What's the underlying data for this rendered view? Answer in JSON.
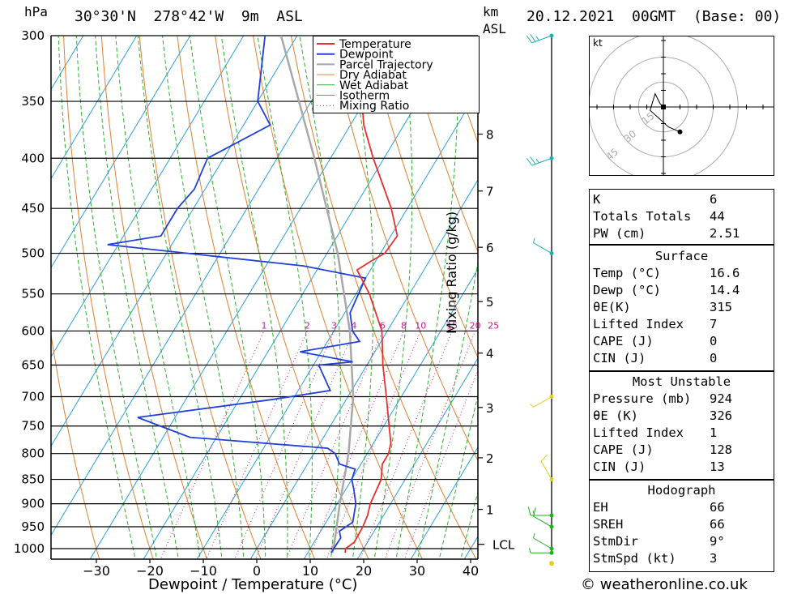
{
  "header": {
    "unit_left": "hPa",
    "location": "30°30'N  278°42'W  9m  ASL",
    "km_label": "km",
    "asl_label": "ASL",
    "datetime": "20.12.2021  00GMT  (Base: 00)"
  },
  "chart_data": {
    "type": "skew-t",
    "xlabel": "Dewpoint / Temperature (°C)",
    "ylabel_right": "Mixing Ratio (g/kg)",
    "pressure_levels": [
      300,
      350,
      400,
      450,
      500,
      550,
      600,
      650,
      700,
      750,
      800,
      850,
      900,
      950,
      1000
    ],
    "temp_ticks": [
      -30,
      -20,
      -10,
      0,
      10,
      20,
      30,
      40
    ],
    "km_ticks": [
      {
        "label": "8",
        "p": 378
      },
      {
        "label": "7",
        "p": 432
      },
      {
        "label": "6",
        "p": 493
      },
      {
        "label": "5",
        "p": 560
      },
      {
        "label": "4",
        "p": 632
      },
      {
        "label": "3",
        "p": 718
      },
      {
        "label": "2",
        "p": 808
      },
      {
        "label": "1",
        "p": 912
      }
    ],
    "lcl_label": "LCL",
    "lcl_p": 990,
    "mixing_ratio_labels": [
      "1",
      "2",
      "3",
      "4",
      "6",
      "8",
      "10",
      "15",
      "20",
      "25"
    ],
    "legend": [
      "Temperature",
      "Dewpoint",
      "Parcel Trajectory",
      "Dry Adiabat",
      "Wet Adiabat",
      "Isotherm",
      "Mixing Ratio"
    ],
    "colors": {
      "temperature": "#e83030",
      "dewpoint": "#2040d8",
      "parcel": "#a8a8a8",
      "dry_adiabat": "#e08030",
      "wet_adiabat": "#30b030",
      "isotherm": "#2aa0e0",
      "mixing_ratio": "#c0208a"
    },
    "temperature": [
      {
        "p": 1010,
        "t": 17.0
      },
      {
        "p": 1000,
        "t": 16.6
      },
      {
        "p": 985,
        "t": 17.5
      },
      {
        "p": 950,
        "t": 17.4
      },
      {
        "p": 925,
        "t": 17.0
      },
      {
        "p": 900,
        "t": 16.2
      },
      {
        "p": 850,
        "t": 15.5
      },
      {
        "p": 820,
        "t": 14.0
      },
      {
        "p": 800,
        "t": 14.0
      },
      {
        "p": 780,
        "t": 13.2
      },
      {
        "p": 750,
        "t": 11.0
      },
      {
        "p": 700,
        "t": 7.2
      },
      {
        "p": 650,
        "t": 3.0
      },
      {
        "p": 600,
        "t": -1.0
      },
      {
        "p": 550,
        "t": -7.5
      },
      {
        "p": 520,
        "t": -12.5
      },
      {
        "p": 510,
        "t": -11.0
      },
      {
        "p": 500,
        "t": -9.2
      },
      {
        "p": 480,
        "t": -8.8
      },
      {
        "p": 450,
        "t": -13.0
      },
      {
        "p": 400,
        "t": -22.0
      },
      {
        "p": 370,
        "t": -27.5
      },
      {
        "p": 350,
        "t": -30.5
      },
      {
        "p": 300,
        "t": -40.0
      }
    ],
    "dewpoint": [
      {
        "p": 1010,
        "t": 14.4
      },
      {
        "p": 1000,
        "t": 14.4
      },
      {
        "p": 975,
        "t": 14.5
      },
      {
        "p": 960,
        "t": 13.5
      },
      {
        "p": 940,
        "t": 15.0
      },
      {
        "p": 900,
        "t": 13.5
      },
      {
        "p": 870,
        "t": 11.5
      },
      {
        "p": 850,
        "t": 10.0
      },
      {
        "p": 830,
        "t": 9.5
      },
      {
        "p": 820,
        "t": 6.0
      },
      {
        "p": 800,
        "t": 4.0
      },
      {
        "p": 790,
        "t": 2.0
      },
      {
        "p": 770,
        "t": -25.0
      },
      {
        "p": 735,
        "t": -37.0
      },
      {
        "p": 705,
        "t": -14.0
      },
      {
        "p": 690,
        "t": -4.0
      },
      {
        "p": 650,
        "t": -9.0
      },
      {
        "p": 645,
        "t": -3.0
      },
      {
        "p": 630,
        "t": -14.0
      },
      {
        "p": 615,
        "t": -4.0
      },
      {
        "p": 600,
        "t": -6.5
      },
      {
        "p": 575,
        "t": -9.0
      },
      {
        "p": 530,
        "t": -10.0
      },
      {
        "p": 515,
        "t": -23.0
      },
      {
        "p": 490,
        "t": -62.0
      },
      {
        "p": 480,
        "t": -53.0
      },
      {
        "p": 450,
        "t": -53.0
      },
      {
        "p": 430,
        "t": -52.0
      },
      {
        "p": 400,
        "t": -53.0
      },
      {
        "p": 370,
        "t": -45.0
      },
      {
        "p": 350,
        "t": -50.0
      },
      {
        "p": 300,
        "t": -56.0
      }
    ],
    "parcel": [
      {
        "p": 1010,
        "t": 14.6
      },
      {
        "p": 990,
        "t": 14.0
      },
      {
        "p": 900,
        "t": 10.5
      },
      {
        "p": 800,
        "t": 6.5
      },
      {
        "p": 700,
        "t": 1.0
      },
      {
        "p": 600,
        "t": -7.0
      },
      {
        "p": 500,
        "t": -18.0
      },
      {
        "p": 400,
        "t": -33.0
      },
      {
        "p": 300,
        "t": -53.0
      }
    ],
    "hodograph_unit": "kt",
    "hodograph_ring_labels": [
      "15",
      "30",
      "45"
    ],
    "hodograph_points_kt": [
      [
        0,
        0
      ],
      [
        -2,
        2
      ],
      [
        -5,
        8
      ],
      [
        -8,
        -2
      ],
      [
        3,
        -12
      ],
      [
        10,
        -15
      ]
    ],
    "wind_barbs": [
      {
        "p": 1010,
        "dir": 270,
        "spd": 5
      },
      {
        "p": 1000,
        "dir": 300,
        "spd": 5
      },
      {
        "p": 950,
        "dir": 300,
        "spd": 10
      },
      {
        "p": 925,
        "dir": 270,
        "spd": 15
      },
      {
        "p": 850,
        "dir": 330,
        "spd": 10
      },
      {
        "p": 700,
        "dir": 240,
        "spd": 5
      },
      {
        "p": 500,
        "dir": 300,
        "spd": 5
      },
      {
        "p": 400,
        "dir": 250,
        "spd": 25
      },
      {
        "p": 300,
        "dir": 250,
        "spd": 25
      }
    ]
  },
  "indices": {
    "general": [
      {
        "label": "K",
        "value": "6"
      },
      {
        "label": "Totals Totals",
        "value": "44"
      },
      {
        "label": "PW (cm)",
        "value": "2.51"
      }
    ],
    "surface_title": "Surface",
    "surface": [
      {
        "label": "Temp (°C)",
        "value": "16.6"
      },
      {
        "label": "Dewp (°C)",
        "value": "14.4"
      },
      {
        "label": "θE(K)",
        "value": "315"
      },
      {
        "label": "Lifted Index",
        "value": "7"
      },
      {
        "label": "CAPE (J)",
        "value": "0"
      },
      {
        "label": "CIN (J)",
        "value": "0"
      }
    ],
    "unstable_title": "Most Unstable",
    "unstable": [
      {
        "label": "Pressure (mb)",
        "value": "924"
      },
      {
        "label": "θE (K)",
        "value": "326"
      },
      {
        "label": "Lifted Index",
        "value": "1"
      },
      {
        "label": "CAPE (J)",
        "value": "128"
      },
      {
        "label": "CIN (J)",
        "value": "13"
      }
    ],
    "hodograph_title": "Hodograph",
    "hodograph": [
      {
        "label": "EH",
        "value": "66"
      },
      {
        "label": "SREH",
        "value": "66"
      },
      {
        "label": "StmDir",
        "value": "9°"
      },
      {
        "label": "StmSpd (kt)",
        "value": "3"
      }
    ]
  },
  "footer": {
    "copyright": "© weatheronline.co.uk"
  }
}
